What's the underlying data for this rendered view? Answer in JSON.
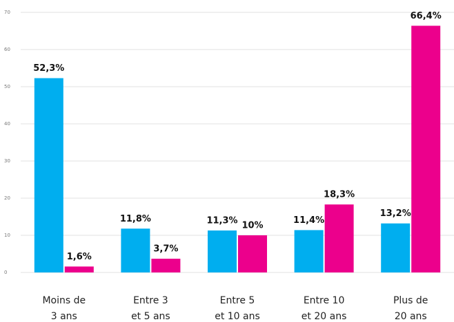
{
  "chart_data": {
    "type": "bar",
    "categories": [
      [
        "Moins de",
        "3 ans"
      ],
      [
        "Entre 3",
        "et 5 ans"
      ],
      [
        "Entre 5",
        "et 10 ans"
      ],
      [
        "Entre 10",
        "et 20 ans"
      ],
      [
        "Plus de",
        "20 ans"
      ]
    ],
    "series": [
      {
        "color": "#00aeef",
        "values": [
          52.3,
          11.8,
          11.3,
          11.4,
          13.2
        ],
        "value_labels": [
          "52,3%",
          "11,8%",
          "11,3%",
          "11,4%",
          "13,2%"
        ]
      },
      {
        "color": "#ec008c",
        "values": [
          1.6,
          3.7,
          10,
          18.3,
          66.4
        ],
        "value_labels": [
          "1,6%",
          "3,7%",
          "10%",
          "18,3%",
          "66,4%"
        ]
      }
    ],
    "ylim": [
      0,
      70
    ],
    "yticks": [
      0,
      10,
      20,
      30,
      40,
      50,
      60,
      70
    ],
    "grid": true
  }
}
